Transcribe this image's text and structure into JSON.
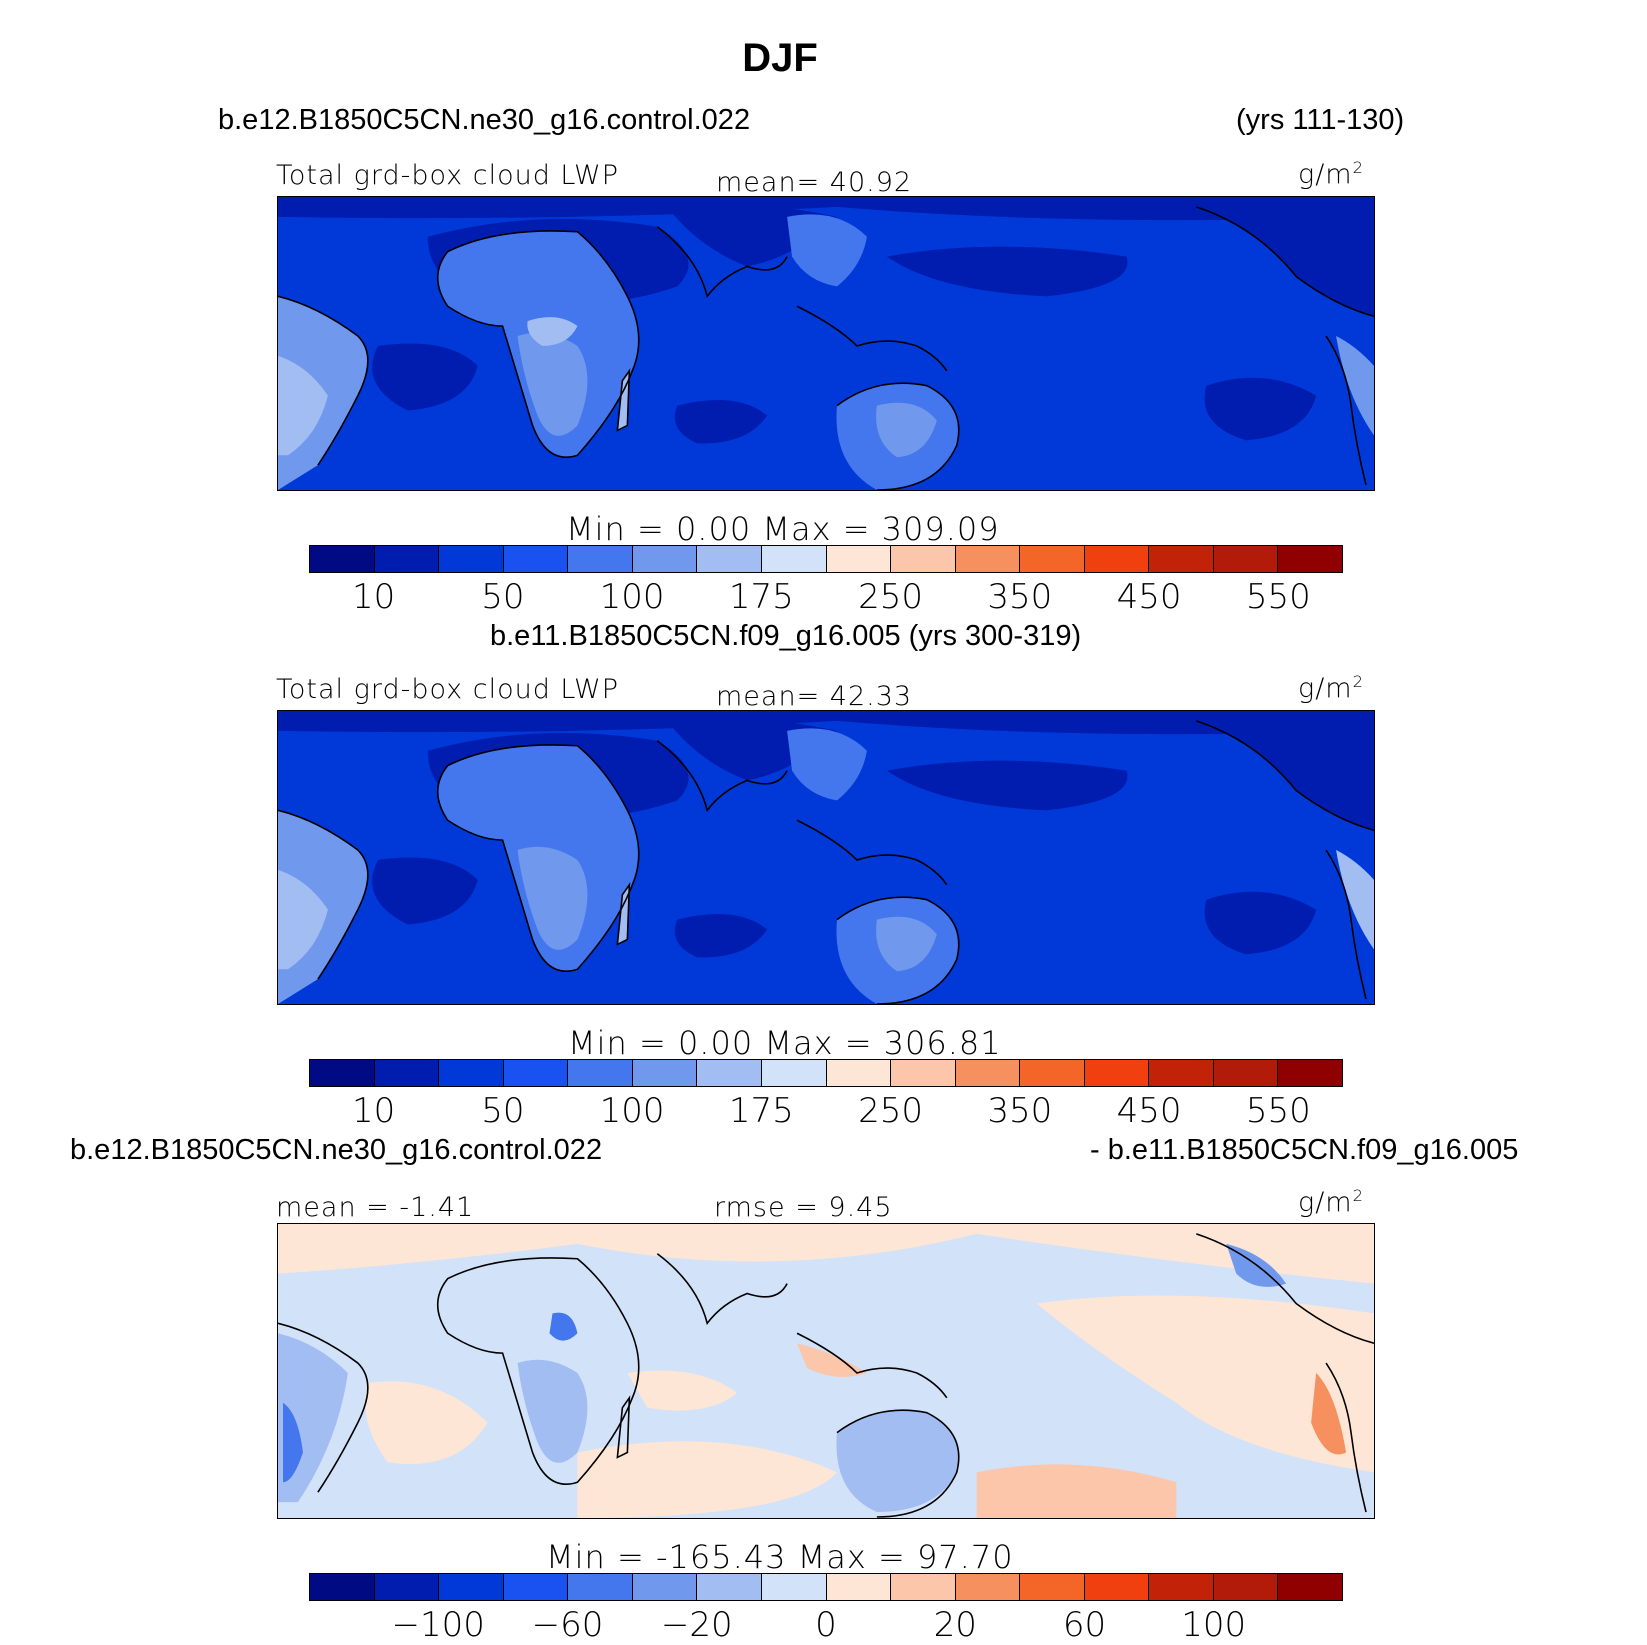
{
  "title": "DJF",
  "panel1": {
    "case": "b.e12.B1850C5CN.ne30_g16.control.022",
    "years": "(yrs 111-130)",
    "variable": "Total grd-box cloud LWP",
    "stat": "mean=  40.92",
    "units": "g/m",
    "units_sup": "2",
    "minmax": "Min =    0.00  Max  =  309.09"
  },
  "panel2": {
    "case": "b.e11.B1850C5CN.f09_g16.005 (yrs 300-319)",
    "variable": "Total grd-box cloud LWP",
    "stat": "mean=  42.33",
    "units": "g/m",
    "units_sup": "2",
    "minmax": "Min =    0.00  Max  =  306.81"
  },
  "panel3": {
    "case_left": "b.e12.B1850C5CN.ne30_g16.control.022",
    "case_right": "- b.e11.B1850C5CN.f09_g16.005",
    "stat_left": "mean =   -1.41",
    "stat_right": "rmse =    9.45",
    "units": "g/m",
    "units_sup": "2",
    "minmax": "Min = -165.43  Max  =   97.70"
  },
  "colorbar_colors": [
    "#000a82",
    "#001db0",
    "#0039d8",
    "#1a52f2",
    "#4477ee",
    "#7098ec",
    "#a2bdf2",
    "#d2e2f8",
    "#fde6d6",
    "#fbc6aa",
    "#f6905e",
    "#f46528",
    "#f04010",
    "#c22208",
    "#b21a0a",
    "#900000"
  ],
  "chart_data": [
    {
      "type": "heatmap",
      "title": "Total grd-box cloud LWP",
      "case": "b.e12.B1850C5CN.ne30_g16.control.022",
      "years": "yrs 111-130",
      "units": "g/m2",
      "mean": 40.92,
      "min": 0.0,
      "max": 309.09,
      "colorbar_ticks": [
        "10",
        "50",
        "100",
        "175",
        "250",
        "350",
        "450",
        "550"
      ]
    },
    {
      "type": "heatmap",
      "title": "Total grd-box cloud LWP",
      "case": "b.e11.B1850C5CN.f09_g16.005",
      "years": "yrs 300-319",
      "units": "g/m2",
      "mean": 42.33,
      "min": 0.0,
      "max": 306.81,
      "colorbar_ticks": [
        "10",
        "50",
        "100",
        "175",
        "250",
        "350",
        "450",
        "550"
      ]
    },
    {
      "type": "heatmap",
      "title": "b.e12.B1850C5CN.ne30_g16.control.022 - b.e11.B1850C5CN.f09_g16.005",
      "units": "g/m2",
      "mean": -1.41,
      "rmse": 9.45,
      "min": -165.43,
      "max": 97.7,
      "colorbar_ticks": [
        "-100",
        "-60",
        "-20",
        "0",
        "20",
        "60",
        "100"
      ]
    }
  ],
  "ticks_abs": [
    "10",
    "50",
    "100",
    "175",
    "250",
    "350",
    "450",
    "550"
  ],
  "ticks_diff": [
    "−100",
    "−60",
    "−20",
    "0",
    "20",
    "60",
    "100"
  ]
}
